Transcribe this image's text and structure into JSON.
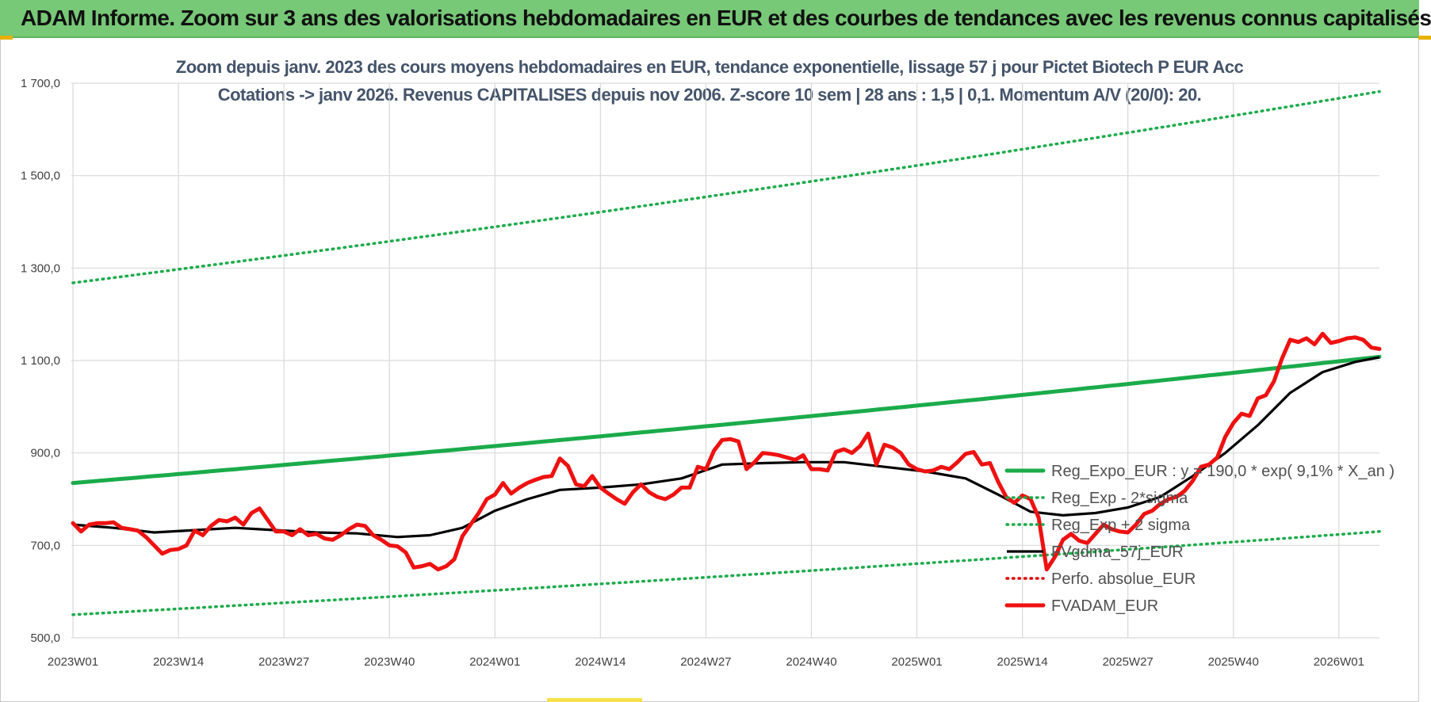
{
  "banner": {
    "title": "ADAM Informe. Zoom sur 3 ans des valorisations hebdomadaires en EUR et des courbes de tendances avec les revenus connus capitalisés"
  },
  "colors": {
    "banner_bg": "#77c877",
    "title_text": "#44546a",
    "reg_expo": "#1aab4a",
    "sigma_bands": "#1aab4a",
    "fvgdma": "#000000",
    "perfo": "#e00000",
    "fvadam": "#ee1111",
    "grid": "#d9d9d9"
  },
  "chart_data": {
    "type": "line",
    "title": "Zoom depuis janv. 2023 des cours moyens hebdomadaires en EUR, tendance exponentielle, lissage 57 j pour Pictet Biotech P EUR Acc",
    "subtitle": "Cotations -> janv 2026. Revenus CAPITALISES depuis nov 2006. Z-score 10 sem | 28 ans : 1,5 | 0,1. Momentum A/V (20/0): 20.",
    "ylim": [
      500,
      1700
    ],
    "y_ticks": [
      "500,0",
      "700,0",
      "900,0",
      "1 100,0",
      "1 300,0",
      "1 500,0",
      "1 700,0"
    ],
    "y_tick_values": [
      500,
      700,
      900,
      1100,
      1300,
      1500,
      1700
    ],
    "x_ticks": [
      "2023W01",
      "2023W14",
      "2023W27",
      "2023W40",
      "2024W01",
      "2024W14",
      "2024W27",
      "2024W40",
      "2025W01",
      "2025W14",
      "2025W27",
      "2025W40",
      "2026W01"
    ],
    "x_tick_weeks": [
      0,
      13,
      26,
      39,
      52,
      65,
      78,
      91,
      104,
      117,
      130,
      143,
      156
    ],
    "x_range_weeks": [
      0,
      161
    ],
    "grid": true,
    "legend_position": "right",
    "series": [
      {
        "name": "Reg_Expo_EUR : y = 190,0 * exp( 9,1% *  X_an )",
        "style": "solid-thick",
        "color": "#1aab4a",
        "x": [
          0,
          161
        ],
        "values": [
          835,
          1108
        ],
        "curve": "exponential"
      },
      {
        "name": "Reg_Exp - 2*sigma",
        "style": "dotted",
        "color": "#1aab4a",
        "x": [
          0,
          161
        ],
        "values": [
          550,
          730
        ],
        "curve": "exponential"
      },
      {
        "name": "Reg_Exp + 2 sigma",
        "style": "dotted",
        "color": "#1aab4a",
        "x": [
          0,
          161
        ],
        "values": [
          1268,
          1682
        ],
        "curve": "exponential"
      },
      {
        "name": "FVgdma_57j_EUR",
        "style": "solid",
        "color": "#000000",
        "x": [
          0,
          5,
          10,
          15,
          20,
          25,
          30,
          35,
          40,
          44,
          48,
          52,
          56,
          60,
          65,
          70,
          75,
          80,
          85,
          90,
          95,
          100,
          105,
          110,
          114,
          118,
          122,
          126,
          130,
          134,
          138,
          142,
          146,
          150,
          154,
          158,
          161
        ],
        "values": [
          745,
          738,
          728,
          733,
          738,
          733,
          728,
          726,
          718,
          722,
          738,
          775,
          800,
          820,
          825,
          832,
          845,
          875,
          878,
          880,
          880,
          870,
          860,
          845,
          810,
          773,
          765,
          770,
          782,
          805,
          850,
          900,
          960,
          1030,
          1075,
          1097,
          1107
        ]
      },
      {
        "name": "Perfo. absolue_EUR",
        "style": "dotted",
        "color": "#e00000",
        "x": [],
        "values": []
      },
      {
        "name": "FVADAM_EUR",
        "style": "solid-thick",
        "color": "#ee1111",
        "x": [
          0,
          1,
          2,
          3,
          4,
          5,
          6,
          7,
          8,
          9,
          10,
          11,
          12,
          13,
          14,
          15,
          16,
          17,
          18,
          19,
          20,
          21,
          22,
          23,
          24,
          25,
          26,
          27,
          28,
          29,
          30,
          31,
          32,
          33,
          34,
          35,
          36,
          37,
          38,
          39,
          40,
          41,
          42,
          43,
          44,
          45,
          46,
          47,
          48,
          49,
          50,
          51,
          52,
          53,
          54,
          55,
          56,
          57,
          58,
          59,
          60,
          61,
          62,
          63,
          64,
          65,
          66,
          67,
          68,
          69,
          70,
          71,
          72,
          73,
          74,
          75,
          76,
          77,
          78,
          79,
          80,
          81,
          82,
          83,
          84,
          85,
          86,
          87,
          88,
          89,
          90,
          91,
          92,
          93,
          94,
          95,
          96,
          97,
          98,
          99,
          100,
          101,
          102,
          103,
          104,
          105,
          106,
          107,
          108,
          109,
          110,
          111,
          112,
          113,
          114,
          115,
          116,
          117,
          118,
          119,
          120,
          121,
          122,
          123,
          124,
          125,
          126,
          127,
          128,
          129,
          130,
          131,
          132,
          133,
          134,
          135,
          136,
          137,
          138,
          139,
          140,
          141,
          142,
          143,
          144,
          145,
          146,
          147,
          148,
          149,
          150,
          151,
          152,
          153,
          154,
          155,
          156,
          157,
          158,
          159,
          160,
          161
        ],
        "values": [
          748,
          730,
          745,
          748,
          748,
          750,
          738,
          735,
          732,
          718,
          700,
          682,
          690,
          692,
          700,
          732,
          722,
          742,
          755,
          752,
          760,
          745,
          770,
          780,
          755,
          730,
          730,
          722,
          735,
          722,
          725,
          715,
          712,
          722,
          735,
          745,
          742,
          722,
          712,
          700,
          698,
          685,
          652,
          655,
          660,
          648,
          655,
          670,
          720,
          745,
          770,
          800,
          810,
          835,
          812,
          825,
          835,
          842,
          848,
          850,
          888,
          872,
          832,
          828,
          850,
          825,
          812,
          800,
          790,
          815,
          832,
          815,
          805,
          800,
          810,
          825,
          825,
          870,
          865,
          905,
          928,
          930,
          925,
          865,
          880,
          900,
          898,
          895,
          890,
          885,
          895,
          865,
          865,
          862,
          902,
          908,
          900,
          915,
          942,
          875,
          918,
          912,
          900,
          875,
          865,
          860,
          862,
          870,
          865,
          880,
          898,
          902,
          875,
          878,
          838,
          805,
          792,
          808,
          800,
          760,
          648,
          675,
          712,
          725,
          710,
          705,
          725,
          745,
          735,
          730,
          728,
          745,
          768,
          775,
          790,
          800,
          805,
          818,
          840,
          870,
          875,
          890,
          935,
          965,
          985,
          980,
          1018,
          1025,
          1055,
          1105,
          1145,
          1140,
          1148,
          1135,
          1158,
          1138,
          1142,
          1148,
          1150,
          1145,
          1128,
          1125
        ]
      }
    ]
  }
}
